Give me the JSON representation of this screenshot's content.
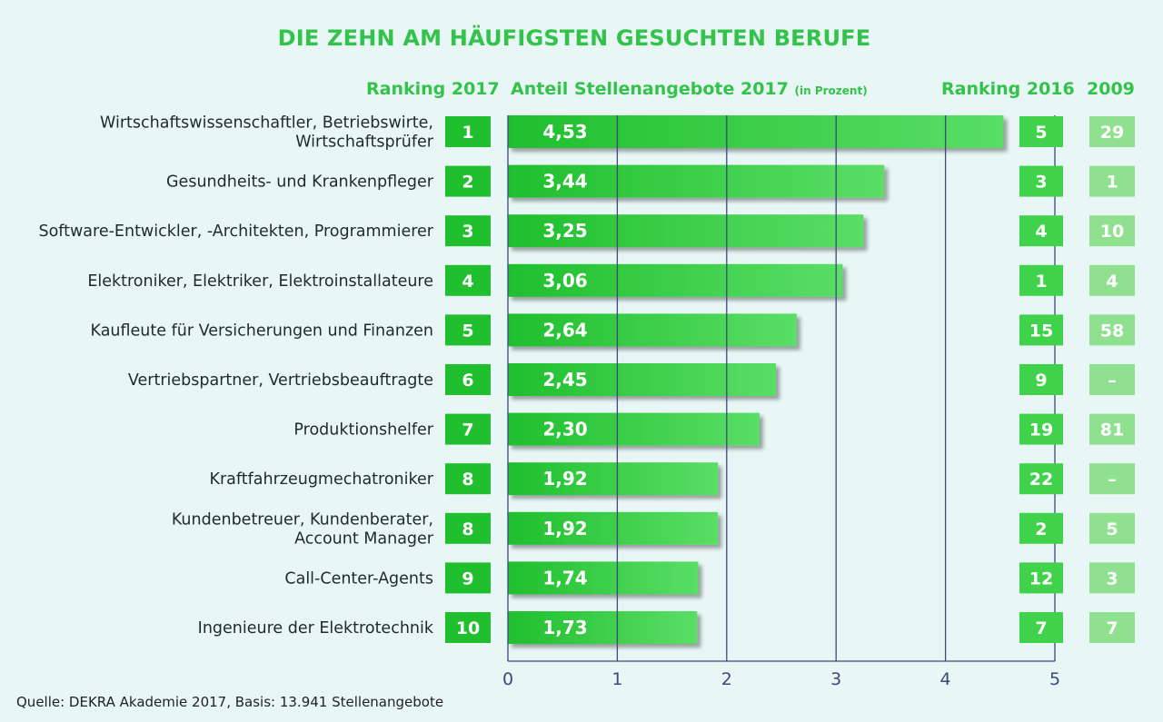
{
  "title": "DIE ZEHN AM HÄUFIGSTEN GESUCHTEN BERUFE",
  "headers": {
    "rank2017": "Ranking 2017",
    "share": "Anteil Stellenangebote 2017",
    "share_unit": "(in Prozent)",
    "rank2016": "Ranking 2016",
    "y2009": "2009"
  },
  "source": "Quelle: DEKRA Akademie 2017, Basis: 13.941 Stellenangebote",
  "colors": {
    "title": "#33c24a",
    "bar_start": "#1fbf2d",
    "bar_end": "#56dd62",
    "box2017": "#1fbf2d",
    "box2016": "#3fd24a",
    "box2009": "#8fe08f",
    "axis": "#3a4a7a"
  },
  "chart_data": {
    "type": "bar",
    "orientation": "horizontal",
    "categories": [
      [
        "Wirtschaftswissenschaftler, Betriebswirte,",
        "Wirtschaftsprüfer"
      ],
      [
        "Gesundheits- und Krankenpfleger"
      ],
      [
        "Software-Entwickler, -Architekten, Programmierer"
      ],
      [
        "Elektroniker, Elektriker, Elektroinstallateure"
      ],
      [
        "Kaufleute für Versicherungen und Finanzen"
      ],
      [
        "Vertriebspartner, Vertriebsbeauftragte"
      ],
      [
        "Produktionshelfer"
      ],
      [
        "Kraftfahrzeugmechatroniker"
      ],
      [
        "Kundenbetreuer, Kundenberater,",
        "Account Manager"
      ],
      [
        "Call-Center-Agents"
      ],
      [
        "Ingenieure der Elektrotechnik"
      ]
    ],
    "values": [
      4.53,
      3.44,
      3.25,
      3.06,
      2.64,
      2.45,
      2.3,
      1.92,
      1.92,
      1.74,
      1.73
    ],
    "value_labels": [
      "4,53",
      "3,44",
      "3,25",
      "3,06",
      "2,64",
      "2,45",
      "2,30",
      "1,92",
      "1,92",
      "1,74",
      "1,73"
    ],
    "ranking_2017": [
      "1",
      "2",
      "3",
      "4",
      "5",
      "6",
      "7",
      "8",
      "8",
      "9",
      "10"
    ],
    "ranking_2016": [
      "5",
      "3",
      "4",
      "1",
      "15",
      "9",
      "19",
      "22",
      "2",
      "12",
      "7"
    ],
    "ranking_2009": [
      "29",
      "1",
      "10",
      "4",
      "58",
      "–",
      "81",
      "–",
      "5",
      "3",
      "7"
    ],
    "xlim": [
      0,
      5
    ],
    "xticks": [
      "0",
      "1",
      "2",
      "3",
      "4",
      "5"
    ],
    "grid": true
  }
}
